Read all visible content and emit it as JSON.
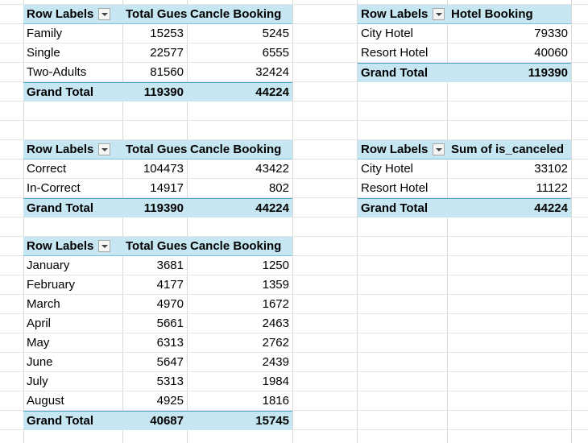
{
  "pivots": [
    {
      "id": "pivot-guest-type",
      "headers": [
        "Row Labels",
        "Total Gues",
        "Cancle Booking"
      ],
      "rows": [
        [
          "Family",
          "15253",
          "5245"
        ],
        [
          "Single",
          "22577",
          "6555"
        ],
        [
          "Two-Adults",
          "81560",
          "32424"
        ]
      ],
      "total": [
        "Grand Total",
        "119390",
        "44224"
      ]
    },
    {
      "id": "pivot-hotel-booking",
      "headers": [
        "Row Labels",
        "Hotel Booking"
      ],
      "rows": [
        [
          "City Hotel",
          "79330"
        ],
        [
          "Resort Hotel",
          "40060"
        ]
      ],
      "total": [
        "Grand Total",
        "119390"
      ]
    },
    {
      "id": "pivot-correctness",
      "headers": [
        "Row Labels",
        "Total Gues",
        "Cancle Booking"
      ],
      "rows": [
        [
          "Correct",
          "104473",
          "43422"
        ],
        [
          "In-Correct",
          "14917",
          "802"
        ]
      ],
      "total": [
        "Grand Total",
        "119390",
        "44224"
      ]
    },
    {
      "id": "pivot-cancel-by-hotel",
      "headers": [
        "Row Labels",
        "Sum of is_canceled"
      ],
      "rows": [
        [
          "City Hotel",
          "33102"
        ],
        [
          "Resort Hotel",
          "11122"
        ]
      ],
      "total": [
        "Grand Total",
        "44224"
      ]
    },
    {
      "id": "pivot-by-month",
      "headers": [
        "Row Labels",
        "Total Gues",
        "Cancle Booking"
      ],
      "rows": [
        [
          "January",
          "3681",
          "1250"
        ],
        [
          "February",
          "4177",
          "1359"
        ],
        [
          "March",
          "4970",
          "1672"
        ],
        [
          "April",
          "5661",
          "2463"
        ],
        [
          "May",
          "6313",
          "2762"
        ],
        [
          "June",
          "5647",
          "2439"
        ],
        [
          "July",
          "5313",
          "1984"
        ],
        [
          "August",
          "4925",
          "1816"
        ]
      ],
      "total": [
        "Grand Total",
        "40687",
        "15745"
      ]
    }
  ]
}
